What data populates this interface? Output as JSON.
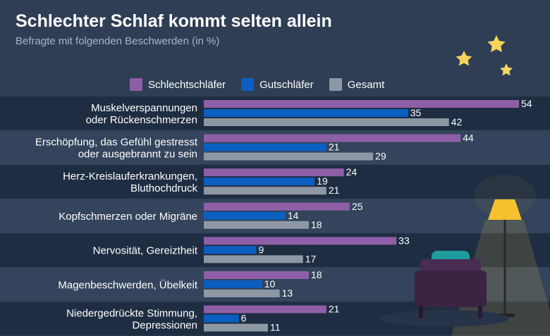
{
  "title": "Schlechter Schlaf kommt selten allein",
  "subtitle": "Befragte mit folgenden Beschwerden (in %)",
  "chart_data": {
    "type": "bar",
    "orientation": "horizontal",
    "title": "Schlechter Schlaf kommt selten allein",
    "subtitle": "Befragte mit folgenden Beschwerden (in %)",
    "xlabel": "",
    "ylabel": "",
    "xlim": [
      0,
      54
    ],
    "grid": false,
    "legend_position": "top",
    "categories": [
      [
        "Muskelverspannungen",
        "oder Rückenschmerzen"
      ],
      [
        "Erschöpfung, das Gefühl gestresst",
        "oder ausgebrannt zu sein"
      ],
      [
        "Herz-Kreislauferkrankungen,",
        "Bluthochdruck"
      ],
      [
        "Kopfschmerzen oder Migräne"
      ],
      [
        "Nervosität, Gereiztheit"
      ],
      [
        "Magenbeschwerden, Übelkeit"
      ],
      [
        "Niedergedrückte Stimmung,",
        "Depressionen"
      ]
    ],
    "series": [
      {
        "name": "Schlechtschläfer",
        "color": "#8e5fa6",
        "values": [
          54,
          44,
          24,
          25,
          33,
          18,
          21
        ]
      },
      {
        "name": "Gutschläfer",
        "color": "#0b5fc0",
        "values": [
          35,
          21,
          19,
          14,
          9,
          10,
          6
        ]
      },
      {
        "name": "Gesamt",
        "color": "#8e98a5",
        "values": [
          42,
          29,
          21,
          18,
          17,
          13,
          11
        ]
      }
    ]
  },
  "colors": {
    "background": "#2f3e55",
    "band_dark": "#1f2d42",
    "band_light": "#34445c",
    "star": "#f4d45d",
    "lamp_shade": "#f6c12f",
    "chair": "#3b2344",
    "pillow": "#1e9c9e"
  },
  "decor": {
    "stars": "three-stars-icon",
    "lamp": "floor-lamp-icon",
    "chair": "armchair-icon"
  }
}
